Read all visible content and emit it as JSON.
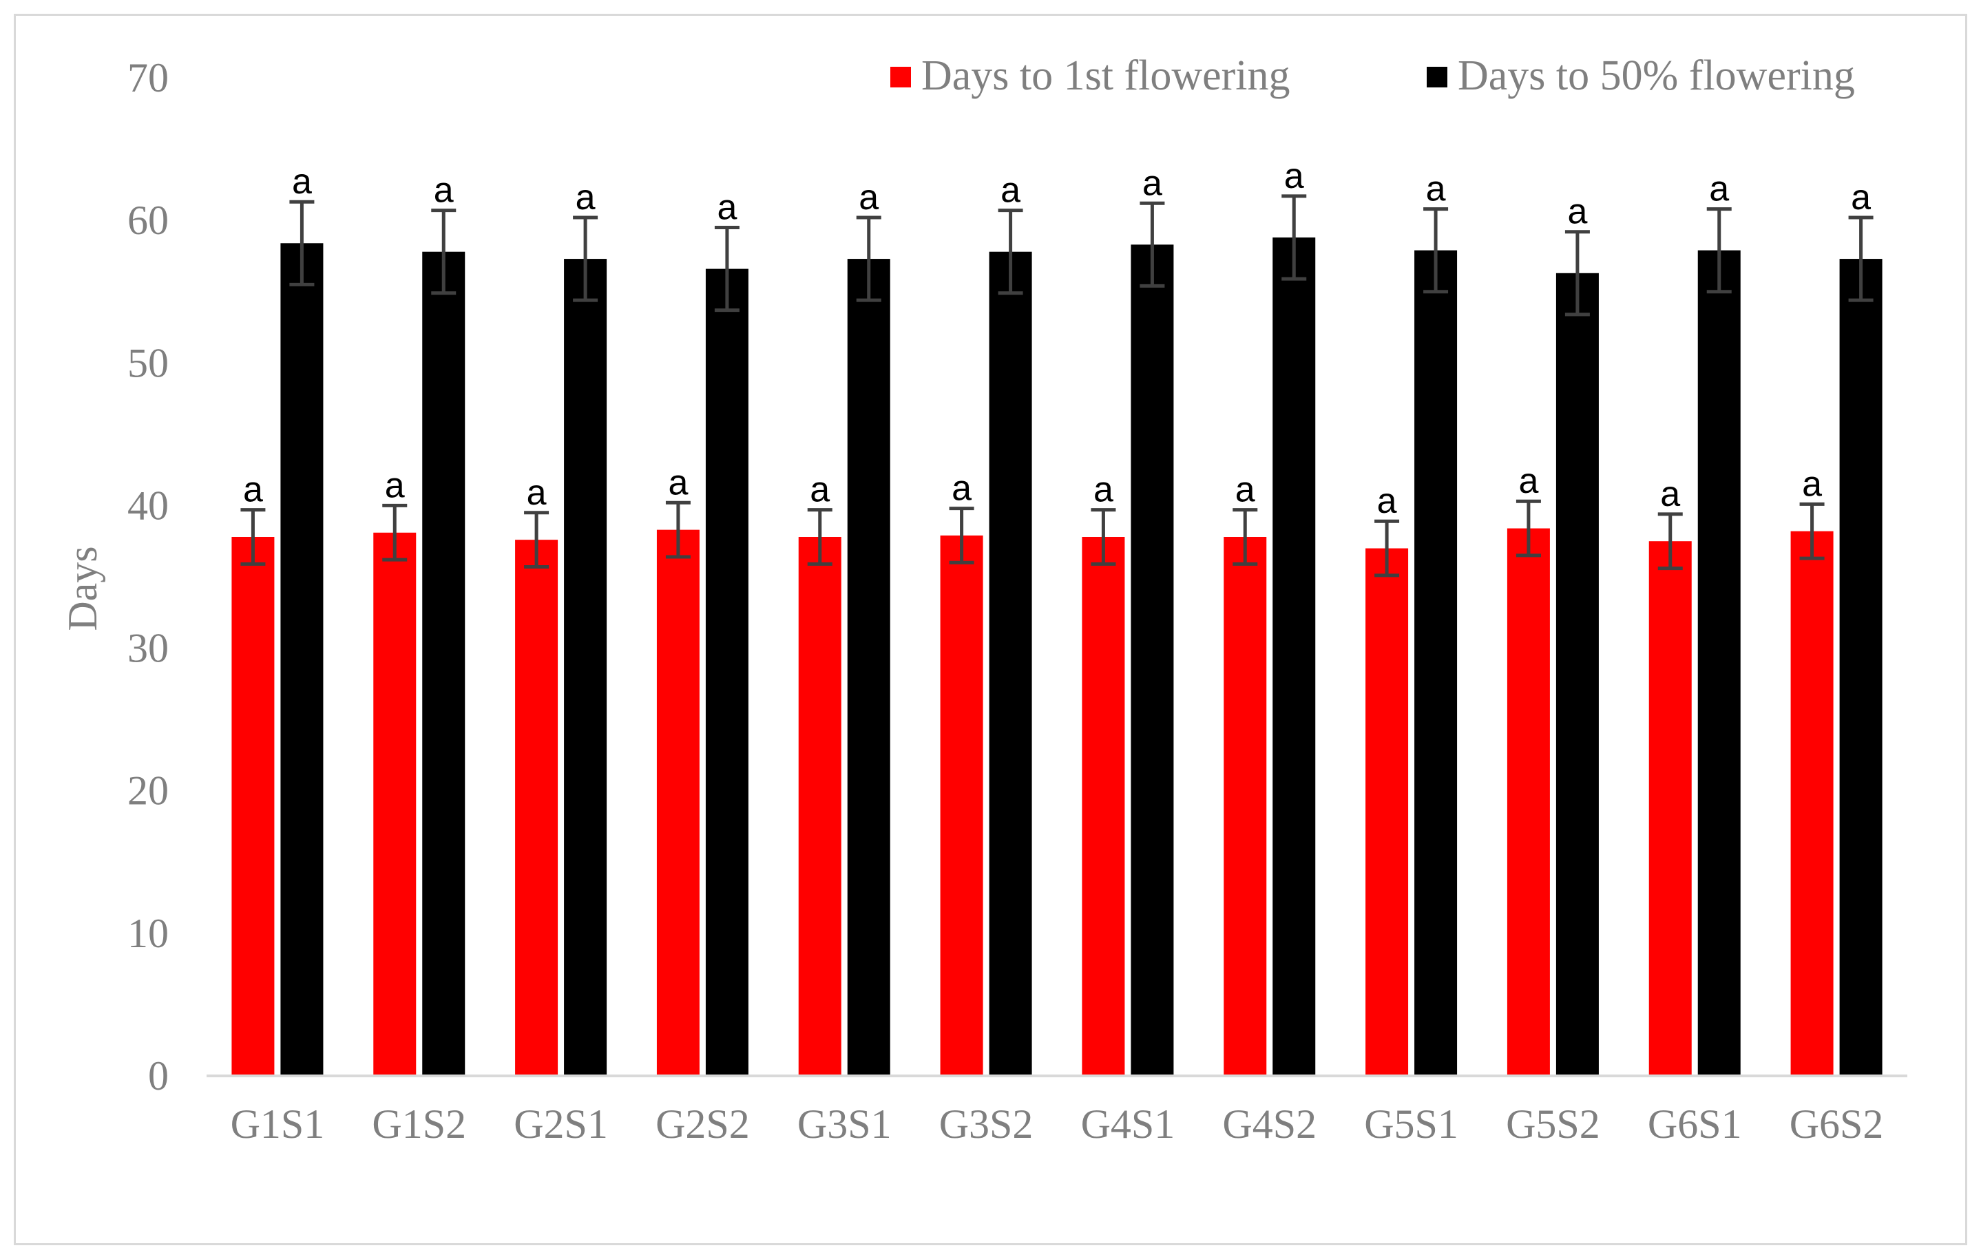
{
  "chart_data": {
    "type": "bar",
    "categories": [
      "G1S1",
      "G1S2",
      "G2S1",
      "G2S2",
      "G3S1",
      "G3S2",
      "G4S1",
      "G4S2",
      "G5S1",
      "G5S2",
      "G6S1",
      "G6S2"
    ],
    "series": [
      {
        "name": "Days to 1st flowering",
        "color": "#ff0000",
        "values": [
          37.8,
          38.1,
          37.6,
          38.3,
          37.8,
          37.9,
          37.8,
          37.8,
          37.0,
          38.4,
          37.5,
          38.2
        ],
        "errors": [
          1.9,
          1.9,
          1.9,
          1.9,
          1.9,
          1.9,
          1.9,
          1.9,
          1.9,
          1.9,
          1.9,
          1.9
        ],
        "significance": [
          "a",
          "a",
          "a",
          "a",
          "a",
          "a",
          "a",
          "a",
          "a",
          "a",
          "a",
          "a"
        ]
      },
      {
        "name": "Days to 50% flowering",
        "color": "#000000",
        "values": [
          58.4,
          57.8,
          57.3,
          56.6,
          57.3,
          57.8,
          58.3,
          58.8,
          57.9,
          56.3,
          57.9,
          57.3
        ],
        "errors": [
          2.9,
          2.9,
          2.9,
          2.9,
          2.9,
          2.9,
          2.9,
          2.9,
          2.9,
          2.9,
          2.9,
          2.9
        ],
        "significance": [
          "a",
          "a",
          "a",
          "a",
          "a",
          "a",
          "a",
          "a",
          "a",
          "a",
          "a",
          "a"
        ]
      }
    ],
    "ylabel": "Days",
    "xlabel": "",
    "ylim": [
      0,
      70
    ],
    "yticks": [
      "0",
      "10",
      "20",
      "30",
      "40",
      "50",
      "60",
      "70"
    ],
    "grid": false,
    "legend_position": "top-right",
    "error_bar_color": "#404040",
    "axis_color": "#d9d9d9"
  }
}
